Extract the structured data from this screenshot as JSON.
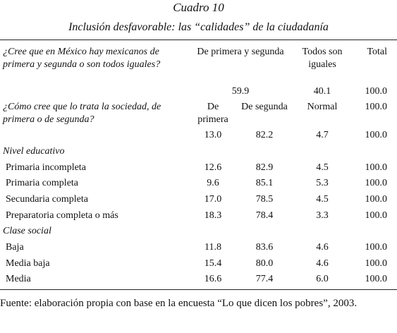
{
  "title": "Cuadro 10",
  "subtitle": "Inclusión desfavorable: las “calidades” de la ciudadanía",
  "table": {
    "header": [
      "¿Cree que en México hay mexicanos de primera y segunda o son todos iguales?",
      "De primera y segunda",
      "Todos son iguales",
      "Total"
    ],
    "overall": [
      "59.9",
      "40.1",
      "100.0"
    ],
    "question2": [
      "¿Cómo cree que lo trata la sociedad, de primera o de segunda?",
      "De primera",
      "De segunda",
      "Normal",
      "100.0"
    ],
    "overall2": [
      "13.0",
      "82.2",
      "4.7",
      "100.0"
    ],
    "groups": [
      {
        "label": "Nivel educativo",
        "rows": [
          [
            "Primaria incompleta",
            "12.6",
            "82.9",
            "4.5",
            "100.0"
          ],
          [
            "Primaria completa",
            "9.6",
            "85.1",
            "5.3",
            "100.0"
          ],
          [
            "Secundaria completa",
            "17.0",
            "78.5",
            "4.5",
            "100.0"
          ],
          [
            "Preparatoria completa o más",
            "18.3",
            "78.4",
            "3.3",
            "100.0"
          ]
        ]
      },
      {
        "label": "Clase social",
        "rows": [
          [
            "Baja",
            "11.8",
            "83.6",
            "4.6",
            "100.0"
          ],
          [
            "Media baja",
            "15.4",
            "80.0",
            "4.6",
            "100.0"
          ],
          [
            "Media",
            "16.6",
            "77.4",
            "6.0",
            "100.0"
          ]
        ]
      }
    ]
  },
  "source": "Fuente: elaboración propia con base en la encuesta “Lo que dicen los pobres”, 2003."
}
